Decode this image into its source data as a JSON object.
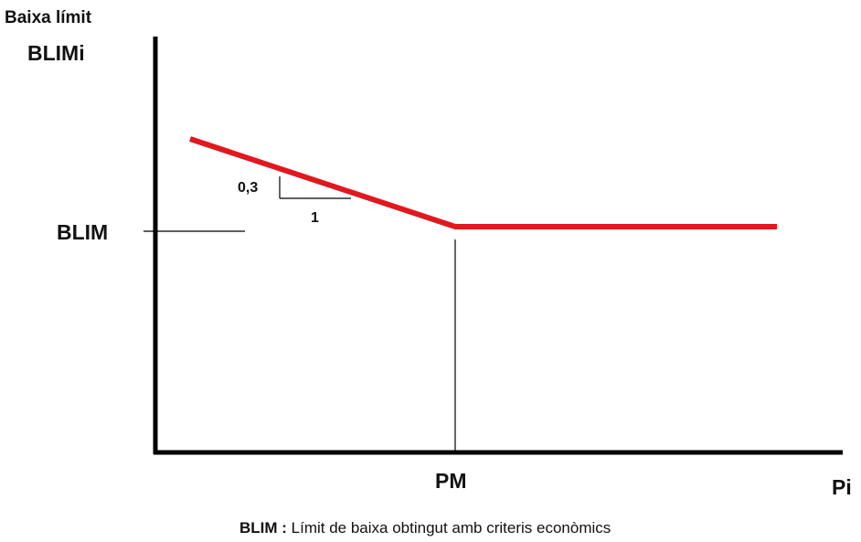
{
  "chart_data": {
    "type": "line",
    "y_label_top": "Baixa límit",
    "y_label": "BLIMi",
    "x_label": "Pi",
    "reference_y_label": "BLIM",
    "reference_x_label": "PM",
    "slope_rise_label": "0,3",
    "slope_run_label": "1",
    "series": [
      {
        "points": [
          {
            "x": "< PM",
            "y": "> BLIM"
          },
          {
            "x": "PM",
            "y": "BLIM"
          },
          {
            "x": "> PM",
            "y": "BLIM"
          }
        ]
      }
    ],
    "series_color": "#e0191f",
    "grid": false,
    "axis_numbers": false
  },
  "footnote": {
    "term": "BLIM",
    "separator": " : ",
    "text": "Límit de baixa obtingut amb criteris econòmics"
  }
}
